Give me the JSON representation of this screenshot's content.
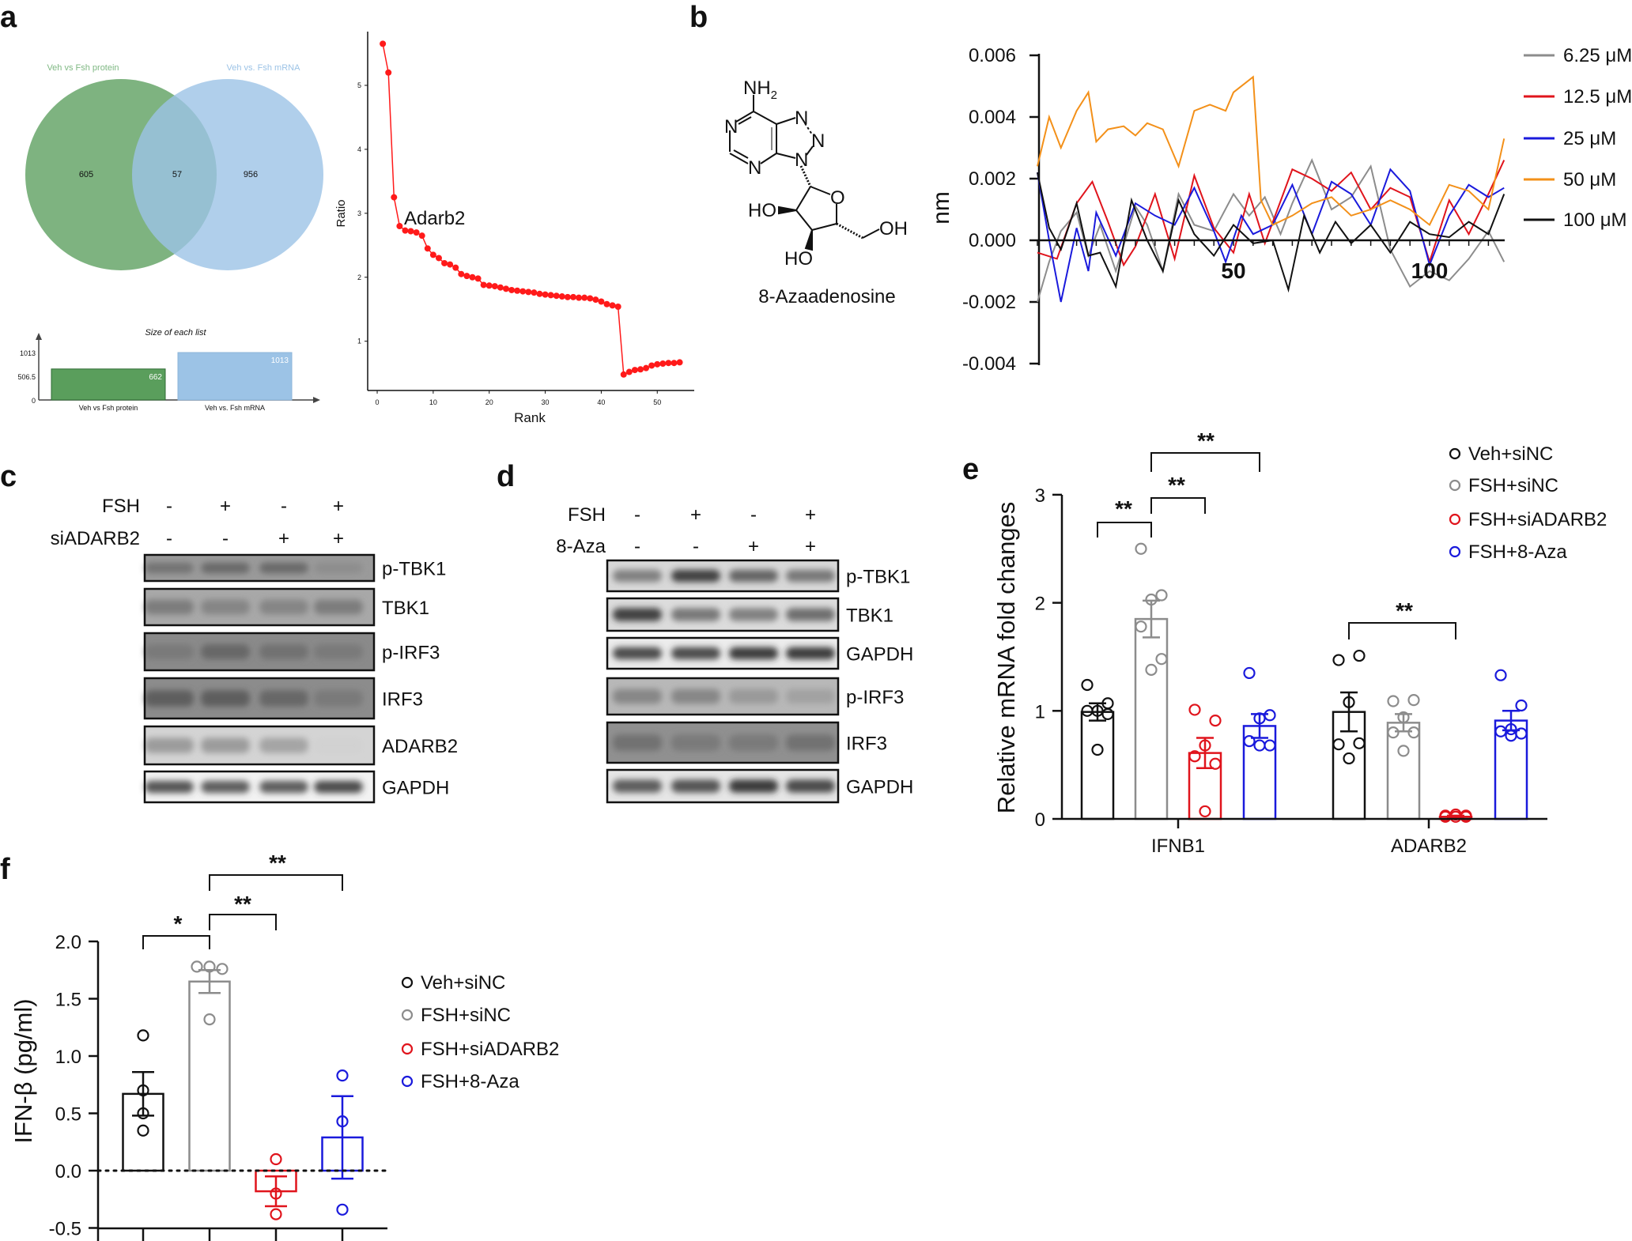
{
  "panel_labels": {
    "a": "a",
    "b": "b",
    "c": "c",
    "d": "d",
    "e": "e",
    "f": "f"
  },
  "venn": {
    "left_label": "Veh vs Fsh protein",
    "right_label": "Veh vs. Fsh mRNA",
    "left_only": "605",
    "overlap": "57",
    "right_only": "956",
    "left_color": "#5a9e5c",
    "right_color": "#9cc3e6"
  },
  "compound": {
    "name": "8-Azaadenosine",
    "atoms": {
      "amine": "NH",
      "amine_sub": "2",
      "n": "N",
      "o": "O",
      "ho": "HO",
      "oh": "OH"
    }
  },
  "blot_c": {
    "conditions": [
      {
        "label": "FSH",
        "values": [
          "-",
          "+",
          "-",
          "+"
        ]
      },
      {
        "label": "siADARB2",
        "values": [
          "-",
          "-",
          "+",
          "+"
        ]
      }
    ],
    "rows": [
      {
        "label": "p-TBK1",
        "intensity": [
          0.55,
          0.6,
          0.6,
          0.4
        ],
        "bg": "#9a9a9a"
      },
      {
        "label": "TBK1",
        "intensity": [
          0.5,
          0.45,
          0.45,
          0.5
        ],
        "bg": "#a8a8a8"
      },
      {
        "label": "p-IRF3",
        "intensity": [
          0.5,
          0.6,
          0.55,
          0.5
        ],
        "bg": "#8a8a8a"
      },
      {
        "label": "IRF3",
        "intensity": [
          0.65,
          0.65,
          0.6,
          0.5
        ],
        "bg": "#8c8c8c"
      },
      {
        "label": "ADARB2",
        "intensity": [
          0.35,
          0.35,
          0.3,
          0.05
        ],
        "bg": "#d4d4d4"
      },
      {
        "label": "GAPDH",
        "intensity": [
          0.75,
          0.7,
          0.7,
          0.8
        ],
        "bg": "#f2f2f2"
      }
    ]
  },
  "blot_d": {
    "conditions": [
      {
        "label": "FSH",
        "values": [
          "-",
          "+",
          "-",
          "+"
        ]
      },
      {
        "label": "8-Aza",
        "values": [
          "-",
          "-",
          "+",
          "+"
        ]
      }
    ],
    "rows": [
      {
        "label": "p-TBK1",
        "intensity": [
          0.5,
          0.85,
          0.65,
          0.55
        ],
        "bg": "#d8d8d8"
      },
      {
        "label": "TBK1",
        "intensity": [
          0.85,
          0.55,
          0.5,
          0.6
        ],
        "bg": "#dcdcdc"
      },
      {
        "label": "GAPDH",
        "intensity": [
          0.8,
          0.8,
          0.9,
          0.9
        ],
        "bg": "#ececec"
      },
      {
        "label": "p-IRF3",
        "intensity": [
          0.45,
          0.45,
          0.35,
          0.3
        ],
        "bg": "#b8b8b8"
      },
      {
        "label": "IRF3",
        "intensity": [
          0.55,
          0.5,
          0.5,
          0.55
        ],
        "bg": "#909090"
      },
      {
        "label": "GAPDH",
        "intensity": [
          0.7,
          0.75,
          0.9,
          0.8
        ],
        "bg": "#e6e6e6"
      }
    ]
  },
  "chart_data": [
    {
      "type": "bar",
      "title": "Size of each list",
      "categories": [
        "Veh vs Fsh protein",
        "Veh vs. Fsh mRNA"
      ],
      "values": [
        662,
        1013
      ],
      "value_labels": [
        "662",
        "1013"
      ],
      "yticks": [
        "0",
        "506.5",
        "1013"
      ],
      "ylim": [
        0,
        1013
      ],
      "colors": [
        "#5a9e5c",
        "#9cc3e6"
      ]
    },
    {
      "type": "line",
      "xlabel": "Rank",
      "ylabel": "Ratio",
      "annotation": "Adarb2",
      "xlim": [
        -1.7,
        56.6
      ],
      "ylim": [
        0.23,
        5.84
      ],
      "xticks": [
        0,
        10,
        20,
        30,
        40,
        50
      ],
      "yticks": [
        1,
        2,
        3,
        4,
        5
      ],
      "color": "#ff1a1a",
      "x": [
        1,
        2,
        3,
        4,
        5,
        6,
        7,
        8,
        9,
        10,
        11,
        12,
        13,
        14,
        15,
        16,
        17,
        18,
        19,
        20,
        21,
        22,
        23,
        24,
        25,
        26,
        27,
        28,
        29,
        30,
        31,
        32,
        33,
        34,
        35,
        36,
        37,
        38,
        39,
        40,
        41,
        42,
        43,
        44,
        45,
        46,
        47,
        48,
        49,
        50,
        51,
        52,
        53,
        54
      ],
      "y": [
        5.65,
        5.2,
        3.25,
        2.8,
        2.73,
        2.72,
        2.7,
        2.65,
        2.45,
        2.35,
        2.3,
        2.22,
        2.2,
        2.15,
        2.05,
        2.02,
        2.0,
        1.98,
        1.88,
        1.87,
        1.86,
        1.84,
        1.82,
        1.8,
        1.79,
        1.78,
        1.77,
        1.76,
        1.74,
        1.73,
        1.72,
        1.71,
        1.7,
        1.69,
        1.69,
        1.68,
        1.68,
        1.67,
        1.65,
        1.62,
        1.58,
        1.56,
        1.54,
        0.48,
        0.52,
        0.55,
        0.56,
        0.58,
        0.62,
        0.64,
        0.65,
        0.66,
        0.66,
        0.67
      ]
    },
    {
      "type": "line",
      "ylabel": "nm",
      "xlim": [
        0,
        119
      ],
      "ylim": [
        -0.004,
        0.006
      ],
      "yticks": [
        "-0.004",
        "-0.002",
        "0.000",
        "0.002",
        "0.004",
        "0.006"
      ],
      "xticks": [
        "50",
        "100"
      ],
      "legend": "right",
      "series": [
        {
          "name": "6.25 μM",
          "color": "#8c8c8c",
          "x": [
            0,
            3,
            6,
            10,
            13,
            16,
            20,
            25,
            28,
            32,
            36,
            40,
            45,
            50,
            54,
            58,
            62,
            65,
            70,
            75,
            80,
            85,
            90,
            95,
            100,
            105,
            110,
            115,
            119
          ],
          "y": [
            -0.002,
            -0.0007,
            0.0003,
            0.0009,
            -0.0005,
            0.0005,
            -0.001,
            0.0011,
            0.0005,
            -0.001,
            0.0015,
            0.0005,
            0.0003,
            0.0015,
            0.0008,
            0.0014,
            0.0002,
            0.0012,
            0.0026,
            0.001,
            0.0014,
            0.0024,
            -0.0003,
            -0.0015,
            -0.001,
            -0.0013,
            -0.0006,
            0.0003,
            -0.0007
          ]
        },
        {
          "name": "12.5 μM",
          "color": "#e0141c",
          "x": [
            0,
            5,
            10,
            14,
            18,
            22,
            25,
            30,
            35,
            40,
            45,
            50,
            54,
            58,
            65,
            70,
            75,
            80,
            85,
            90,
            95,
            100,
            105,
            110,
            115,
            119
          ],
          "y": [
            -0.0004,
            -0.0006,
            0.0012,
            0.0019,
            0.0006,
            -0.0008,
            -0.0002,
            0.0015,
            -0.0006,
            0.0021,
            0.0004,
            -0.0004,
            0.0015,
            -0.0001,
            0.0023,
            0.002,
            0.0016,
            0.0022,
            0.001,
            0.0017,
            0.0014,
            -0.0007,
            0.0013,
            0.0002,
            0.0015,
            0.0026
          ]
        },
        {
          "name": "25 μM",
          "color": "#1a1adc",
          "x": [
            0,
            3,
            6,
            10,
            13,
            15,
            20,
            25,
            30,
            35,
            40,
            45,
            48,
            52,
            55,
            60,
            65,
            70,
            75,
            80,
            85,
            90,
            95,
            100,
            105,
            110,
            115,
            119
          ],
          "y": [
            0.0022,
            0.0,
            -0.002,
            0.0004,
            -0.001,
            0.0009,
            -0.0005,
            0.0012,
            0.0008,
            0.0005,
            0.0017,
            0.0003,
            -0.0007,
            0.0008,
            0.0002,
            0.0005,
            0.0018,
            0.0002,
            0.0019,
            0.0015,
            0.0005,
            0.0023,
            0.0016,
            -0.0008,
            0.0008,
            0.0018,
            0.0014,
            0.0017
          ]
        },
        {
          "name": "50 μM",
          "color": "#f39019",
          "x": [
            0,
            3,
            6,
            10,
            13,
            15,
            18,
            22,
            25,
            28,
            32,
            36,
            40,
            44,
            48,
            50,
            55,
            57,
            60,
            65,
            70,
            75,
            80,
            85,
            90,
            95,
            100,
            105,
            110,
            115,
            119
          ],
          "y": [
            0.0024,
            0.004,
            0.003,
            0.0042,
            0.0048,
            0.0032,
            0.0036,
            0.0037,
            0.0034,
            0.0038,
            0.0036,
            0.0024,
            0.0042,
            0.0044,
            0.0042,
            0.0048,
            0.0053,
            0.0013,
            0.0005,
            0.0008,
            0.0012,
            0.0014,
            0.0008,
            0.001,
            0.0013,
            0.001,
            0.0005,
            0.0018,
            0.0016,
            0.001,
            0.0033
          ]
        },
        {
          "name": "100 μM",
          "color": "#111111",
          "x": [
            0,
            3,
            6,
            10,
            13,
            16,
            20,
            24,
            28,
            32,
            36,
            40,
            45,
            50,
            55,
            60,
            64,
            68,
            72,
            76,
            80,
            85,
            90,
            95,
            100,
            105,
            110,
            115,
            119
          ],
          "y": [
            0.0022,
            0.0004,
            -0.0003,
            0.0012,
            -0.0005,
            -0.0004,
            -0.0015,
            0.0013,
            0.0,
            -0.001,
            0.0013,
            0.0002,
            -0.0005,
            0.0005,
            -0.0001,
            0.0,
            -0.0016,
            0.0008,
            -0.0004,
            0.0006,
            -0.0001,
            0.0005,
            -0.0004,
            0.0006,
            0.0002,
            0.0001,
            0.0006,
            0.0002,
            0.0015
          ]
        }
      ]
    },
    {
      "type": "bar",
      "ylabel": "Relative mRNA fold changes",
      "categories": [
        "IFNB1",
        "ADARB2"
      ],
      "ylim": [
        0,
        3
      ],
      "yticks": [
        "0",
        "1",
        "2",
        "3"
      ],
      "legend": "top-right",
      "series": [
        {
          "name": "Veh+siNC",
          "color": "#111111",
          "means": [
            0.99,
            0.99
          ],
          "sem": [
            0.08,
            0.18
          ],
          "points": [
            [
              1.24,
              1.07,
              1.0,
              1.0,
              0.97,
              0.64
            ],
            [
              1.47,
              1.51,
              1.08,
              0.69,
              0.7,
              0.56
            ]
          ]
        },
        {
          "name": "FSH+siNC",
          "color": "#8c8c8c",
          "means": [
            1.85,
            0.89
          ],
          "sem": [
            0.17,
            0.08
          ],
          "points": [
            [
              2.5,
              2.07,
              2.03,
              1.78,
              1.48,
              1.38
            ],
            [
              1.09,
              1.1,
              0.94,
              0.8,
              0.8,
              0.63
            ]
          ]
        },
        {
          "name": "FSH+siADARB2",
          "color": "#e0141c",
          "means": [
            0.61,
            0.02
          ],
          "sem": [
            0.14,
            0.01
          ],
          "points": [
            [
              1.01,
              0.91,
              0.68,
              0.58,
              0.51,
              0.07
            ],
            [
              0.03,
              0.02,
              0.04,
              0.02,
              0.03,
              0.02
            ]
          ]
        },
        {
          "name": "FSH+8-Aza",
          "color": "#1a1adc",
          "means": [
            0.86,
            0.91
          ],
          "sem": [
            0.11,
            0.09
          ],
          "points": [
            [
              1.35,
              0.96,
              0.93,
              0.72,
              0.68,
              0.68
            ],
            [
              1.33,
              1.05,
              0.83,
              0.81,
              0.79,
              0.77
            ]
          ]
        }
      ],
      "significance": [
        {
          "from": "IFNB1:Veh+siNC",
          "to": "IFNB1:FSH+siNC",
          "label": "**"
        },
        {
          "from": "IFNB1:FSH+siNC",
          "to": "IFNB1:FSH+siADARB2",
          "label": "**"
        },
        {
          "from": "IFNB1:FSH+siNC",
          "to": "IFNB1:FSH+8-Aza",
          "label": "**"
        },
        {
          "from": "ADARB2:Veh+siNC",
          "to": "ADARB2:FSH+siADARB2",
          "label": "**"
        }
      ]
    },
    {
      "type": "bar",
      "ylabel": "IFN-β (pg/ml)",
      "ylim": [
        -0.5,
        2.0
      ],
      "yticks": [
        "-0.5",
        "0.0",
        "0.5",
        "1.0",
        "1.5",
        "2.0"
      ],
      "legend": "right",
      "series": [
        {
          "name": "Veh+siNC",
          "color": "#111111",
          "mean": 0.67,
          "sem": 0.19,
          "points": [
            1.18,
            0.7,
            0.5,
            0.35
          ]
        },
        {
          "name": "FSH+siNC",
          "color": "#8c8c8c",
          "mean": 1.65,
          "sem": 0.1,
          "points": [
            1.78,
            1.78,
            1.76,
            1.32
          ]
        },
        {
          "name": "FSH+siADARB2",
          "color": "#e0141c",
          "mean": -0.18,
          "sem": 0.13,
          "points": [
            0.1,
            -0.2,
            -0.38
          ]
        },
        {
          "name": "FSH+8-Aza",
          "color": "#1a1adc",
          "mean": 0.29,
          "sem": 0.36,
          "points": [
            0.83,
            0.43,
            -0.34
          ]
        }
      ],
      "significance": [
        {
          "from": "Veh+siNC",
          "to": "FSH+siNC",
          "label": "*"
        },
        {
          "from": "FSH+siNC",
          "to": "FSH+siADARB2",
          "label": "**"
        },
        {
          "from": "FSH+siNC",
          "to": "FSH+8-Aza",
          "label": "**"
        }
      ]
    }
  ]
}
